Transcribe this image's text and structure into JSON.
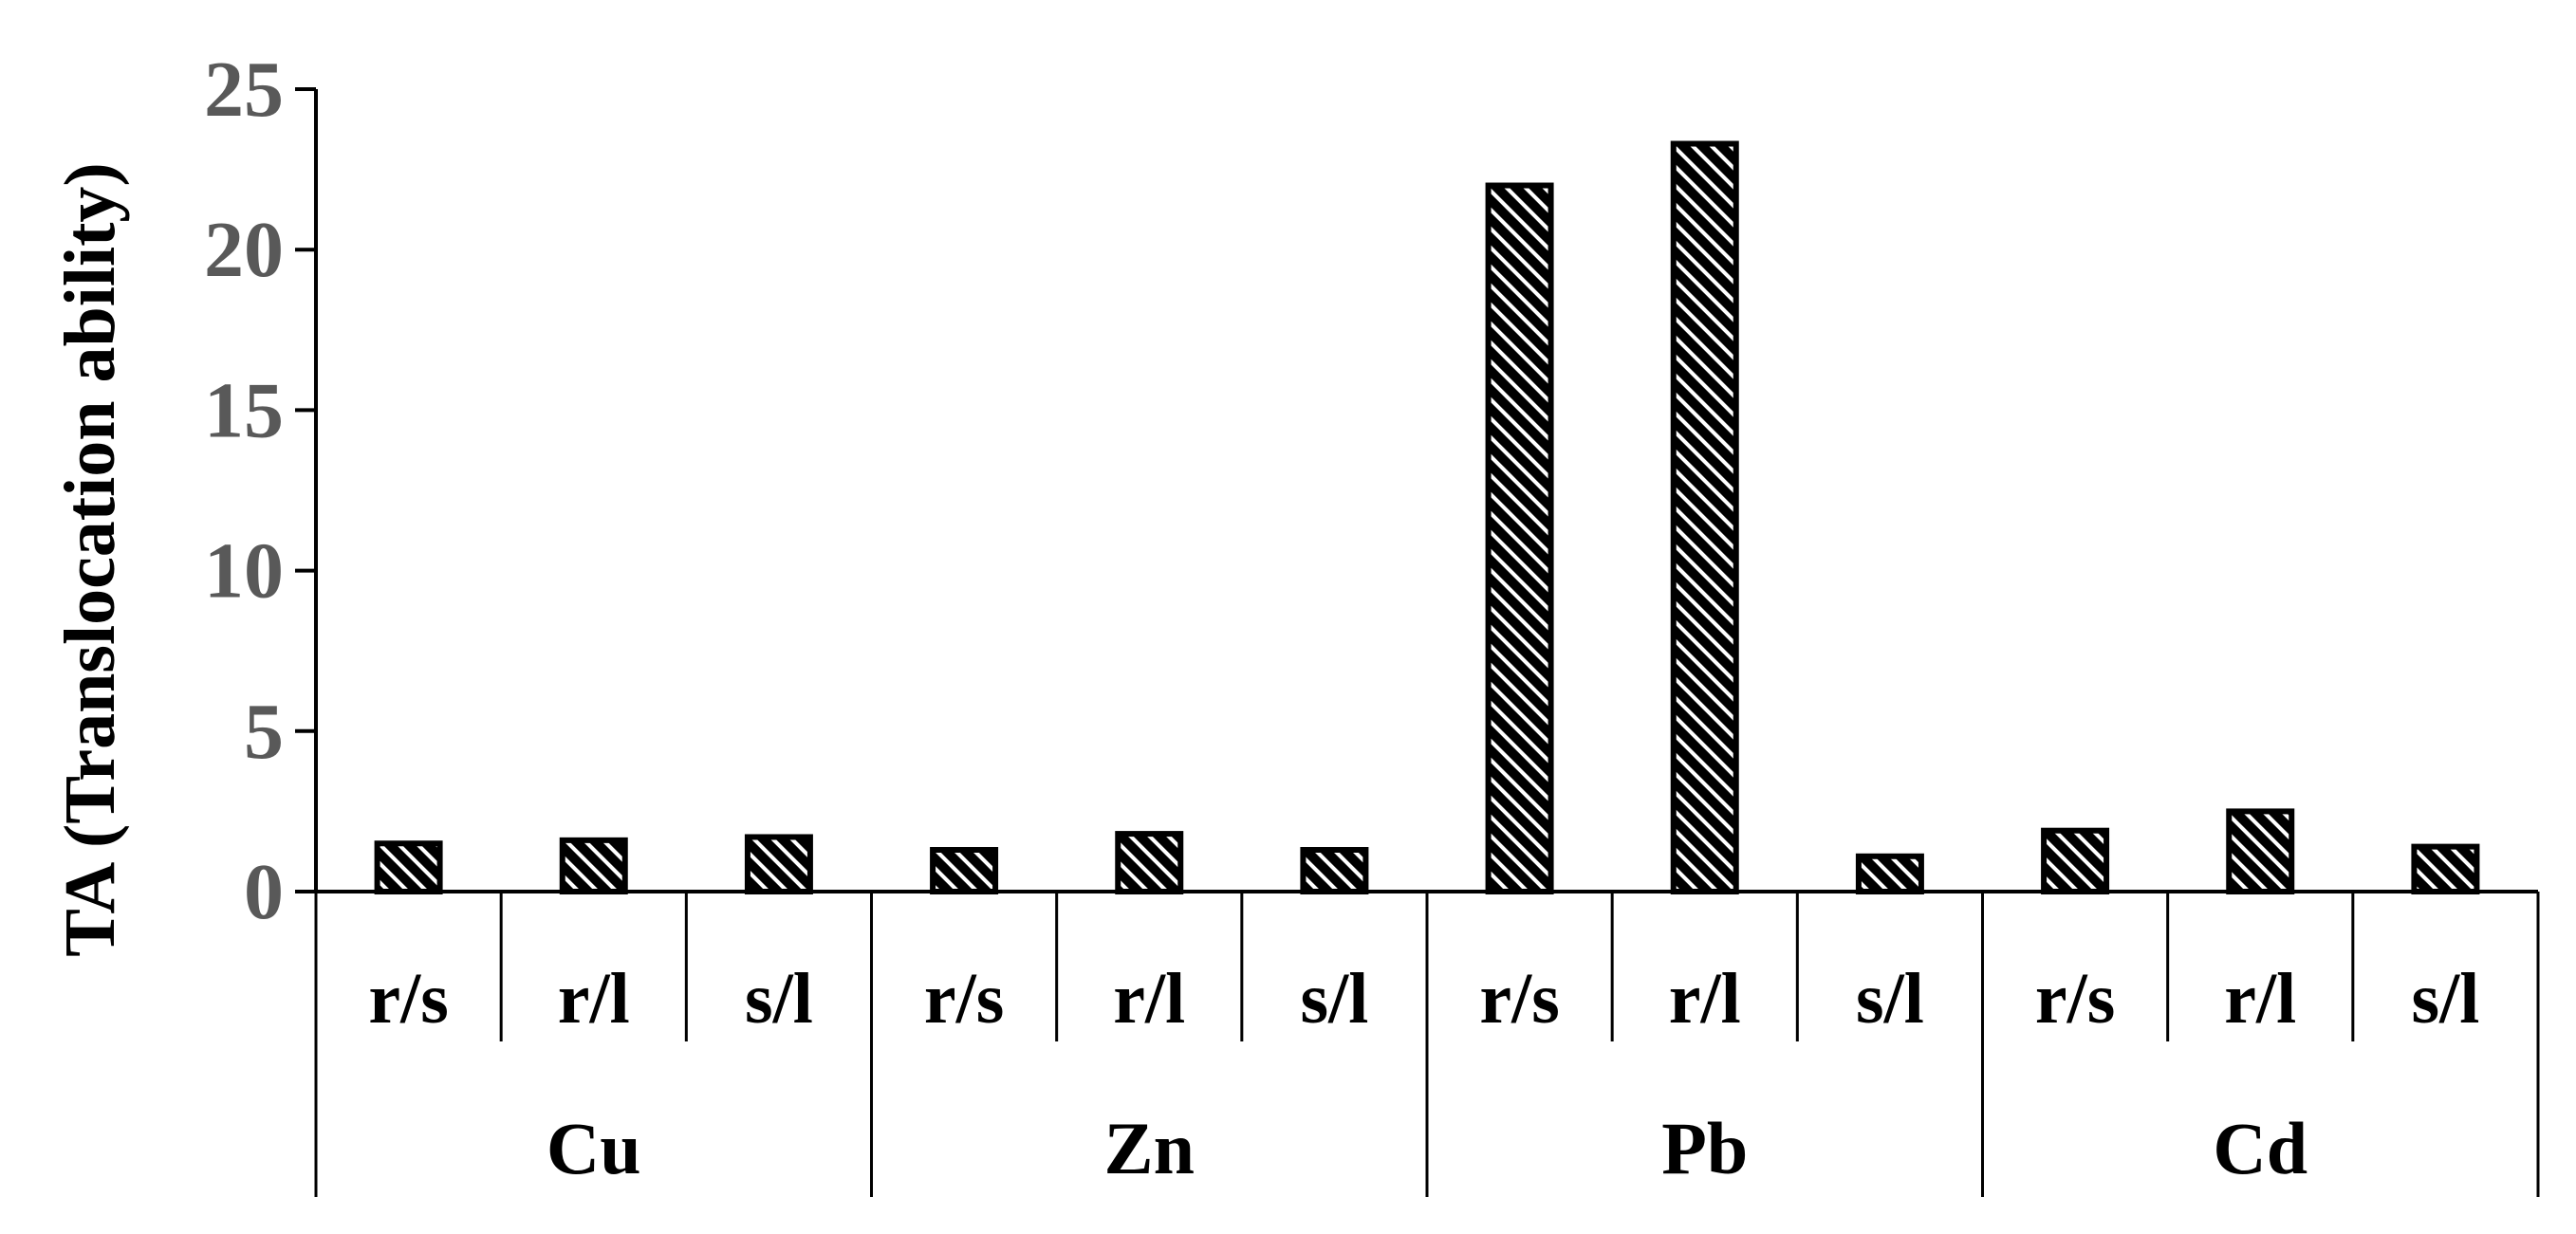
{
  "chart_data": {
    "type": "bar",
    "ylabel": "TA (Translocation ability)",
    "ylim": [
      0,
      25
    ],
    "yticks": [
      0,
      5,
      10,
      15,
      20,
      25
    ],
    "grid": false,
    "groups": [
      {
        "name": "Cu",
        "categories": [
          "r/s",
          "r/l",
          "s/l"
        ],
        "values": [
          1.5,
          1.6,
          1.7
        ]
      },
      {
        "name": "Zn",
        "categories": [
          "r/s",
          "r/l",
          "s/l"
        ],
        "values": [
          1.3,
          1.8,
          1.3
        ]
      },
      {
        "name": "Pb",
        "categories": [
          "r/s",
          "r/l",
          "s/l"
        ],
        "values": [
          22.0,
          23.3,
          1.1
        ]
      },
      {
        "name": "Cd",
        "categories": [
          "r/s",
          "r/l",
          "s/l"
        ],
        "values": [
          1.9,
          2.5,
          1.4
        ]
      }
    ],
    "bar_fill": "diagonal-hatch",
    "colors": {
      "bar_stroke": "#000000",
      "hatch": "#000000",
      "axis": "#000000",
      "tick_text": "#595959"
    }
  }
}
